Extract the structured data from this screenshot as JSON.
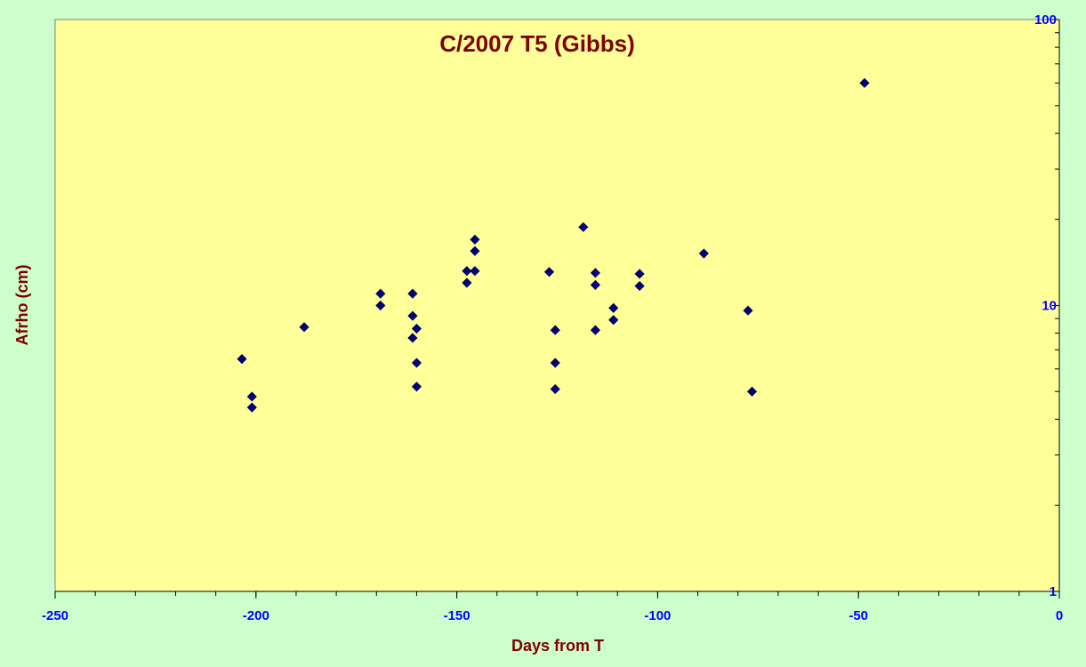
{
  "chart_data": {
    "type": "scatter",
    "title": "C/2007 T5 (Gibbs)",
    "xlabel": "Days from T",
    "ylabel": "Afrho (cm)",
    "xlim": [
      -250,
      0
    ],
    "ylim": [
      1,
      100
    ],
    "y_scale": "log",
    "x_ticks": [
      "-250",
      "-200",
      "-150",
      "-100",
      "-50",
      "0"
    ],
    "x_tick_values": [
      -250,
      -200,
      -150,
      -100,
      -50,
      0
    ],
    "y_ticks": [
      "1",
      "10",
      "100"
    ],
    "y_tick_values": [
      1,
      10,
      100
    ],
    "y_axis_side": "right",
    "grid": false,
    "legend": "none",
    "colors": {
      "background": "#ccffcc",
      "plot_area": "#ffff99",
      "marker": "#000080",
      "title_text": "#800000",
      "tick_text": "#0000ff"
    },
    "series": [
      {
        "marker": "diamond",
        "points": [
          [
            -203.5,
            6.5
          ],
          [
            -201,
            4.8
          ],
          [
            -201,
            4.4
          ],
          [
            -188,
            8.4
          ],
          [
            -169,
            11
          ],
          [
            -169,
            10
          ],
          [
            -161,
            11
          ],
          [
            -161,
            9.2
          ],
          [
            -161,
            7.7
          ],
          [
            -160,
            8.3
          ],
          [
            -160,
            6.3
          ],
          [
            -160,
            5.2
          ],
          [
            -147.5,
            13.2
          ],
          [
            -147.5,
            12
          ],
          [
            -145.5,
            17
          ],
          [
            -145.5,
            15.5
          ],
          [
            -145.5,
            13.2
          ],
          [
            -127,
            13.1
          ],
          [
            -125.5,
            8.2
          ],
          [
            -125.5,
            6.3
          ],
          [
            -125.5,
            5.1
          ],
          [
            -118.5,
            18.8
          ],
          [
            -115.5,
            13
          ],
          [
            -115.5,
            11.8
          ],
          [
            -115.5,
            8.2
          ],
          [
            -111,
            9.8
          ],
          [
            -111,
            8.9
          ],
          [
            -104.5,
            12.9
          ],
          [
            -104.5,
            11.7
          ],
          [
            -88.5,
            15.2
          ],
          [
            -77.5,
            9.6
          ],
          [
            -76.5,
            5
          ],
          [
            -48.5,
            60
          ]
        ]
      }
    ]
  }
}
